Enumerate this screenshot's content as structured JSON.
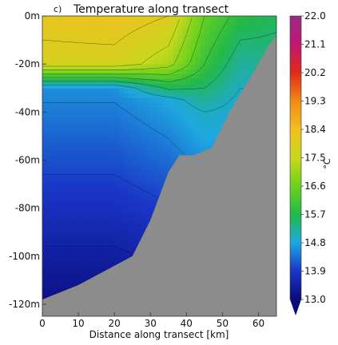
{
  "chart_data": {
    "type": "heatmap",
    "panel_label": "c)",
    "title": "Temperature along transect",
    "xlabel": "Distance along transect [km]",
    "ylabel": "",
    "xlim": [
      0,
      65
    ],
    "ylim": [
      -125,
      0
    ],
    "x_ticks": [
      0,
      10,
      20,
      30,
      40,
      50,
      60
    ],
    "x_tick_labels": [
      "0",
      "10",
      "20",
      "30",
      "40",
      "50",
      "60"
    ],
    "y_ticks": [
      0,
      -20,
      -40,
      -60,
      -80,
      -100,
      -120
    ],
    "y_tick_labels": [
      "0m",
      "-20m",
      "-40m",
      "-60m",
      "-80m",
      "-100m",
      "-120m"
    ],
    "colorbar": {
      "unit": "°C",
      "min": 13.0,
      "max": 22.0,
      "ticks": [
        22.0,
        21.1,
        20.2,
        19.3,
        18.4,
        17.5,
        16.6,
        15.7,
        14.8,
        13.9,
        13.0
      ],
      "tick_labels": [
        "22.0",
        "21.1",
        "20.2",
        "19.3",
        "18.4",
        "17.5",
        "16.6",
        "15.7",
        "14.8",
        "13.9",
        "13.0"
      ],
      "stops": [
        "#0a0a7a",
        "#1a36c8",
        "#1ea8e0",
        "#22b84a",
        "#6cd21e",
        "#c8d81e",
        "#f0c020",
        "#f08a18",
        "#e02a18",
        "#c01870",
        "#9a2a8a"
      ]
    },
    "seabed_color": "#8c8c8c",
    "bottom_profile": [
      {
        "x": 0,
        "y": -118
      },
      {
        "x": 10,
        "y": -112
      },
      {
        "x": 20,
        "y": -104
      },
      {
        "x": 25,
        "y": -100
      },
      {
        "x": 30,
        "y": -85
      },
      {
        "x": 35,
        "y": -65
      },
      {
        "x": 38,
        "y": -58
      },
      {
        "x": 42,
        "y": -58
      },
      {
        "x": 47,
        "y": -55
      },
      {
        "x": 52,
        "y": -40
      },
      {
        "x": 58,
        "y": -25
      },
      {
        "x": 63,
        "y": -12
      },
      {
        "x": 65,
        "y": -8
      }
    ],
    "temperature_profiles": [
      {
        "x": 0,
        "depth": [
          0,
          -20,
          -30,
          -120
        ],
        "temp": [
          18.2,
          17.8,
          14.6,
          13.1
        ]
      },
      {
        "x": 20,
        "depth": [
          0,
          -20,
          -30,
          -120
        ],
        "temp": [
          18.3,
          17.8,
          14.6,
          13.1
        ]
      },
      {
        "x": 35,
        "depth": [
          0,
          -20,
          -35,
          -120
        ],
        "temp": [
          18.0,
          17.2,
          14.8,
          13.2
        ]
      },
      {
        "x": 45,
        "depth": [
          0,
          -20,
          -40,
          -120
        ],
        "temp": [
          16.5,
          16.0,
          15.0,
          13.5
        ]
      },
      {
        "x": 55,
        "depth": [
          0,
          -20,
          -35,
          -120
        ],
        "temp": [
          15.8,
          15.2,
          14.9,
          14.2
        ]
      },
      {
        "x": 65,
        "depth": [
          0,
          -20,
          -40,
          -120
        ],
        "temp": [
          15.6,
          15.3,
          15.0,
          14.6
        ]
      }
    ]
  }
}
